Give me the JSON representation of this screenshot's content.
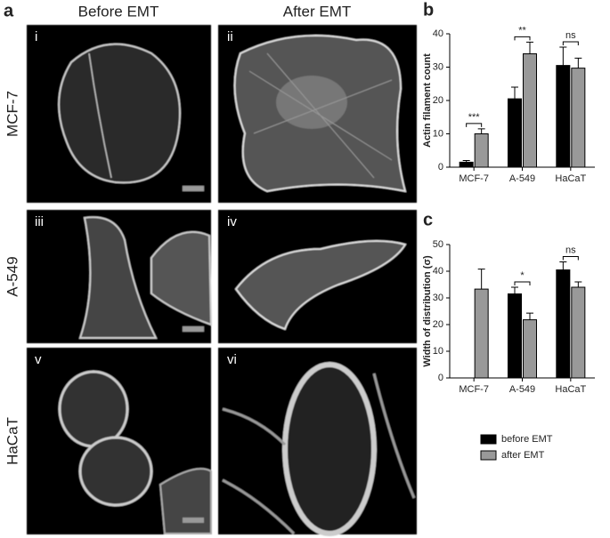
{
  "panel_a": {
    "letter": "a",
    "columns": [
      "Before EMT",
      "After EMT"
    ],
    "rows": [
      "MCF-7",
      "A-549",
      "HaCaT"
    ],
    "images": [
      "i",
      "ii",
      "iii",
      "iv",
      "v",
      "vi"
    ]
  },
  "chart_data": [
    {
      "type": "bar",
      "letter": "b",
      "ylabel": "Actin filament count",
      "categories": [
        "MCF-7",
        "A-549",
        "HaCaT"
      ],
      "series": [
        {
          "color": "#000000",
          "values": [
            1.5,
            20.5,
            30.5
          ],
          "errors": [
            0.5,
            3.5,
            5.5
          ]
        },
        {
          "color": "#999999",
          "values": [
            10,
            34,
            29.7
          ],
          "errors": [
            1.5,
            3.5,
            3
          ]
        }
      ],
      "annotations": [
        "***",
        "**",
        "ns"
      ],
      "ylim": [
        0,
        40
      ],
      "yticks": [
        0,
        10,
        20,
        30,
        40
      ]
    },
    {
      "type": "bar",
      "letter": "c",
      "ylabel": "Width of distribution (σ)",
      "categories": [
        "MCF-7",
        "A-549",
        "HaCaT"
      ],
      "series": [
        {
          "name": "before EMT",
          "color": "#000000",
          "values": [
            null,
            31.5,
            40.5
          ],
          "errors": [
            null,
            2.5,
            3
          ]
        },
        {
          "name": "after EMT",
          "color": "#999999",
          "values": [
            33.3,
            21.8,
            34
          ],
          "errors": [
            7.5,
            2.5,
            2
          ]
        }
      ],
      "annotations": [
        null,
        "*",
        "ns"
      ],
      "ylim": [
        0,
        50
      ],
      "yticks": [
        0,
        10,
        20,
        30,
        40,
        50
      ]
    }
  ]
}
